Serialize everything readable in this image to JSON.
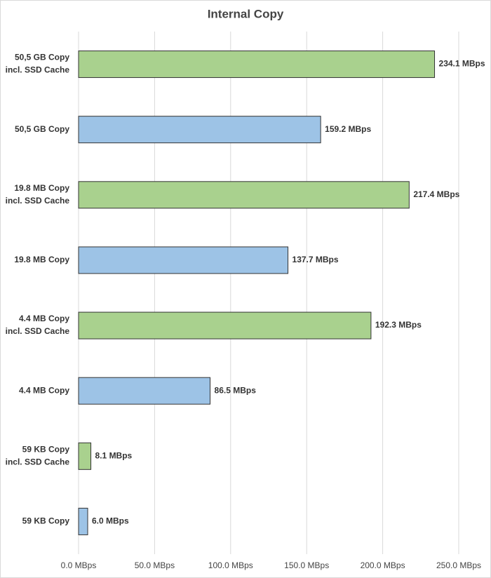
{
  "chart_data": {
    "type": "hbar",
    "title": "Internal Copy",
    "categories": [
      "50,5 GB Copy\nincl. SSD Cache",
      "50,5 GB Copy",
      "19.8 MB Copy\nincl. SSD Cache",
      "19.8 MB Copy",
      "4.4 MB Copy\nincl. SSD Cache",
      "4.4 MB Copy",
      "59 KB Copy\nincl. SSD Cache",
      "59 KB Copy"
    ],
    "values": [
      234.1,
      159.2,
      217.4,
      137.7,
      192.3,
      86.5,
      8.1,
      6.0
    ],
    "value_labels": [
      "234.1 MBps",
      "159.2 MBps",
      "217.4 MBps",
      "137.7 MBps",
      "192.3 MBps",
      "86.5 MBps",
      "8.1 MBps",
      "6.0 MBps"
    ],
    "colors": [
      "#a9d18e",
      "#9dc3e6",
      "#a9d18e",
      "#9dc3e6",
      "#a9d18e",
      "#9dc3e6",
      "#a9d18e",
      "#9dc3e6"
    ],
    "xlim": [
      0,
      250
    ],
    "xticks": [
      {
        "value": 0,
        "label": "0.0 MBps"
      },
      {
        "value": 50,
        "label": "50.0 MBps"
      },
      {
        "value": 100,
        "label": "100.0 MBps"
      },
      {
        "value": 150,
        "label": "150.0 MBps"
      },
      {
        "value": 200,
        "label": "200.0 MBps"
      },
      {
        "value": 250,
        "label": "250.0 MBps"
      }
    ],
    "grid": true
  }
}
